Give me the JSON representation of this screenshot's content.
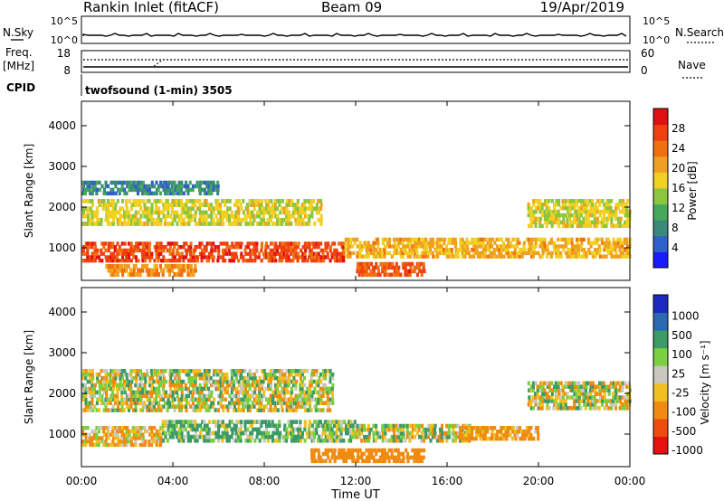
{
  "header": {
    "title": "Rankin Inlet (fitACF)",
    "beam": "Beam 09",
    "date": "19/Apr/2019"
  },
  "noise_panel": {
    "left_label": "N.Sky",
    "left_ticks": [
      "10^5",
      "10^0"
    ],
    "right_ticks": [
      "10^5",
      "10^0"
    ],
    "right_label": "N.Search"
  },
  "freq_panel": {
    "left_label_1": "Freq.",
    "left_label_2": "[MHz]",
    "left_ticks": [
      "18",
      "8"
    ],
    "right_ticks": [
      "60",
      "0"
    ],
    "right_label": "Nave"
  },
  "cpid": {
    "label": "CPID",
    "text": "twofsound (1-min) 3505"
  },
  "power_panel": {
    "ylabel": "Slant Range [km]",
    "yticks": [
      "4000",
      "3000",
      "2000",
      "1000"
    ],
    "cbar_label": "Power [dB]",
    "cbar_ticks": [
      "28",
      "24",
      "20",
      "16",
      "12",
      "8",
      "4"
    ]
  },
  "velocity_panel": {
    "ylabel": "Slant Range [km]",
    "yticks": [
      "4000",
      "3000",
      "2000",
      "1000"
    ],
    "cbar_label": "Velocity [m s⁻¹]",
    "cbar_ticks": [
      "1000",
      "500",
      "100",
      "25",
      "-25",
      "-100",
      "-500",
      "-1000"
    ]
  },
  "xaxis": {
    "label": "Time UT",
    "ticks": [
      "00:00",
      "04:00",
      "08:00",
      "12:00",
      "16:00",
      "20:00",
      "00:00"
    ]
  },
  "chart_data": [
    {
      "type": "heatmap",
      "title": "Power [dB]",
      "xlabel": "Time UT",
      "ylabel": "Slant Range [km]",
      "xlim_hours": [
        0,
        24
      ],
      "ylim": [
        200,
        4600
      ],
      "color_range": [
        0,
        32
      ],
      "bands": [
        {
          "t0": 0.0,
          "t1": 11.5,
          "r0": 650,
          "r1": 1150,
          "value": 27
        },
        {
          "t0": 11.5,
          "t1": 24.0,
          "r0": 750,
          "r1": 1250,
          "value": 20
        },
        {
          "t0": 0.0,
          "t1": 10.5,
          "r0": 1550,
          "r1": 2200,
          "value": 17
        },
        {
          "t0": 0.0,
          "t1": 6.0,
          "r0": 2300,
          "r1": 2650,
          "value": 8
        },
        {
          "t0": 19.5,
          "t1": 24.0,
          "r0": 1500,
          "r1": 2200,
          "value": 17
        },
        {
          "t0": 12.0,
          "t1": 15.0,
          "r0": 300,
          "r1": 650,
          "value": 26
        },
        {
          "t0": 1.0,
          "t1": 5.0,
          "r0": 300,
          "r1": 600,
          "value": 22
        }
      ]
    },
    {
      "type": "heatmap",
      "title": "Velocity [m s-1]",
      "xlabel": "Time UT",
      "ylabel": "Slant Range [km]",
      "xlim_hours": [
        0,
        24
      ],
      "ylim": [
        200,
        4600
      ],
      "color_range": [
        -1000,
        1000
      ],
      "bands": [
        {
          "t0": 0.0,
          "t1": 11.0,
          "r0": 1550,
          "r1": 2600,
          "value": 0
        },
        {
          "t0": 19.5,
          "t1": 24.0,
          "r0": 1600,
          "r1": 2300,
          "value": 0
        },
        {
          "t0": 0.0,
          "t1": 3.5,
          "r0": 700,
          "r1": 1200,
          "value": -100
        },
        {
          "t0": 3.5,
          "t1": 12.0,
          "r0": 800,
          "r1": 1350,
          "value": 100
        },
        {
          "t0": 12.0,
          "t1": 17.0,
          "r0": 800,
          "r1": 1250,
          "value": 0
        },
        {
          "t0": 16.5,
          "t1": 20.0,
          "r0": 850,
          "r1": 1200,
          "value": -200
        },
        {
          "t0": 10.0,
          "t1": 15.0,
          "r0": 300,
          "r1": 650,
          "value": -300
        }
      ]
    }
  ]
}
